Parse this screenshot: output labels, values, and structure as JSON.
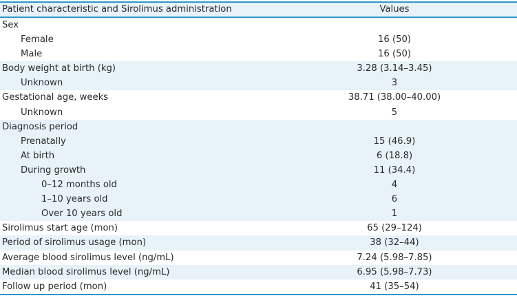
{
  "colors": {
    "rule_blue": "#2e96c8",
    "stripe_light_blue": "#e7f2f9",
    "text": "#2b2b2b",
    "background": "#ffffff"
  },
  "table": {
    "header": {
      "characteristic_label": "Patient characteristic and Sirolimus administration",
      "values_label": "Values"
    },
    "rows": [
      {
        "label": "Sex",
        "value": "",
        "indent": 0,
        "shaded": false
      },
      {
        "label": "Female",
        "value": "16 (50)",
        "indent": 1,
        "shaded": false
      },
      {
        "label": "Male",
        "value": "16 (50)",
        "indent": 1,
        "shaded": false
      },
      {
        "label": "Body weight at birth (kg)",
        "value": "3.28 (3.14–3.45)",
        "indent": 0,
        "shaded": true
      },
      {
        "label": "Unknown",
        "value": "3",
        "indent": 1,
        "shaded": true
      },
      {
        "label": "Gestational age, weeks",
        "value": "38.71 (38.00–40.00)",
        "indent": 0,
        "shaded": false
      },
      {
        "label": "Unknown",
        "value": "5",
        "indent": 1,
        "shaded": false
      },
      {
        "label": "Diagnosis period",
        "value": "",
        "indent": 0,
        "shaded": true
      },
      {
        "label": "Prenatally",
        "value": "15 (46.9)",
        "indent": 1,
        "shaded": true
      },
      {
        "label": "At birth",
        "value": "6 (18.8)",
        "indent": 1,
        "shaded": true
      },
      {
        "label": "During growth",
        "value": "11 (34.4)",
        "indent": 1,
        "shaded": true
      },
      {
        "label": "0–12 months old",
        "value": "4",
        "indent": 2,
        "shaded": true
      },
      {
        "label": "1–10 years old",
        "value": "6",
        "indent": 2,
        "shaded": true
      },
      {
        "label": "Over 10 years old",
        "value": "1",
        "indent": 2,
        "shaded": true
      },
      {
        "label": "Sirolimus start age (mon)",
        "value": "65 (29–124)",
        "indent": 0,
        "shaded": false
      },
      {
        "label": "Period of sirolimus usage (mon)",
        "value": "38 (32–44)",
        "indent": 0,
        "shaded": true
      },
      {
        "label": "Average blood sirolimus level (ng/mL)",
        "value": "7.24 (5.98–7.85)",
        "indent": 0,
        "shaded": false
      },
      {
        "label": "Median blood sirolimus level (ng/mL)",
        "value": "6.95 (5.98–7.73)",
        "indent": 0,
        "shaded": true
      },
      {
        "label": "Follow up period (mon)",
        "value": "41 (35–54)",
        "indent": 0,
        "shaded": false
      }
    ]
  }
}
